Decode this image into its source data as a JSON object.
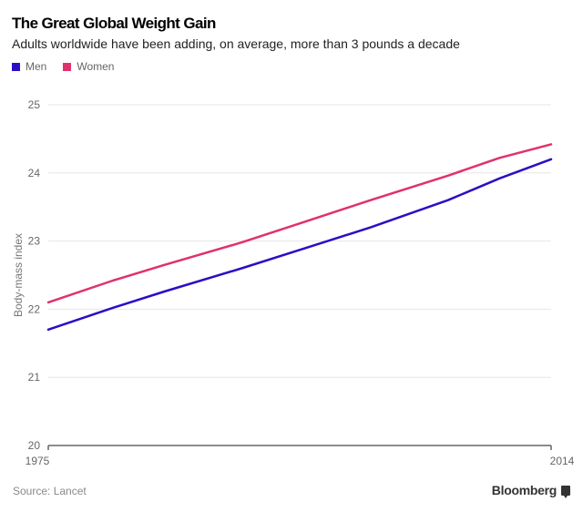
{
  "chart_data": {
    "type": "line",
    "title": "The Great Global Weight Gain",
    "subtitle": "Adults worldwide have been adding, on average, more than 3 pounds a decade",
    "xlabel": "",
    "ylabel": "Body-mass index",
    "xlim": [
      1975,
      2014
    ],
    "ylim": [
      20,
      25
    ],
    "yticks": [
      20,
      21,
      22,
      23,
      24,
      25
    ],
    "xtick_labels": [
      "1975",
      "2014"
    ],
    "grid": true,
    "legend_position": "top-left",
    "x": [
      1975,
      1980,
      1984,
      1990,
      1995,
      2000,
      2006,
      2010,
      2014
    ],
    "series": [
      {
        "name": "Men",
        "color": "#2a0fc4",
        "values": [
          21.7,
          22.02,
          22.26,
          22.6,
          22.9,
          23.2,
          23.6,
          23.92,
          24.2
        ]
      },
      {
        "name": "Women",
        "color": "#e0326a",
        "values": [
          22.1,
          22.42,
          22.65,
          22.98,
          23.29,
          23.6,
          23.96,
          24.22,
          24.42
        ]
      }
    ]
  },
  "footer": {
    "source": "Source: Lancet",
    "brand": "Bloomberg"
  }
}
